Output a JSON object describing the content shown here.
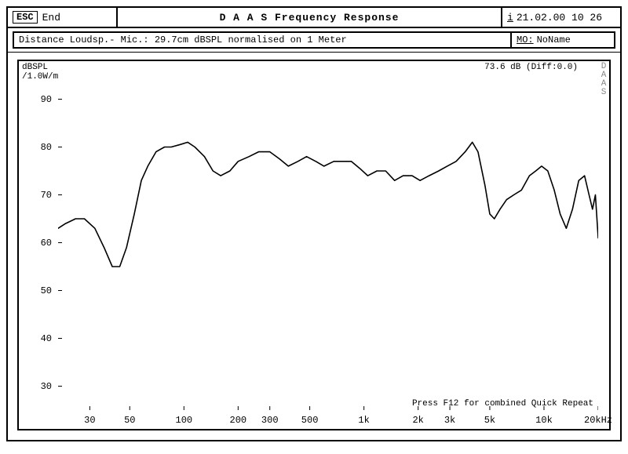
{
  "header": {
    "esc": "ESC",
    "end": "End",
    "title": "D A A S   Frequency Response",
    "info_i": "i",
    "datetime": "21.02.00  10 26"
  },
  "info": {
    "left": "Distance Loudsp.- Mic.: 29.7cm dBSPL normalised on 1 Meter",
    "mo": "MO:",
    "name": "NoName"
  },
  "chart": {
    "type": "line-logx",
    "ylabel_line1": "dBSPL",
    "ylabel_line2": "/1.0W/m",
    "corner": "73.6 dB (Diff:0.0)",
    "watermark": "DAAS",
    "footer": "Press F12 for combined Quick Repeat",
    "ylim": [
      25,
      95
    ],
    "yticks": [
      30,
      40,
      50,
      60,
      70,
      80,
      90
    ],
    "xlim_log10": [
      1.301,
      4.301
    ],
    "xticks": [
      {
        "v": 30,
        "label": "30"
      },
      {
        "v": 50,
        "label": "50"
      },
      {
        "v": 100,
        "label": "100"
      },
      {
        "v": 200,
        "label": "200"
      },
      {
        "v": 300,
        "label": "300"
      },
      {
        "v": 500,
        "label": "500"
      },
      {
        "v": 1000,
        "label": "1k"
      },
      {
        "v": 2000,
        "label": "2k"
      },
      {
        "v": 3000,
        "label": "3k"
      },
      {
        "v": 5000,
        "label": "5k"
      },
      {
        "v": 10000,
        "label": "10k"
      },
      {
        "v": 20000,
        "label": "20kHz"
      }
    ],
    "stroke": "#000000",
    "stroke_width": 1.6,
    "tick_color": "#000000",
    "tick_len": 5,
    "background": "#ffffff",
    "data": [
      [
        20,
        63
      ],
      [
        22,
        64
      ],
      [
        25,
        65
      ],
      [
        28,
        65
      ],
      [
        32,
        63
      ],
      [
        36,
        59
      ],
      [
        40,
        55
      ],
      [
        44,
        55
      ],
      [
        48,
        59
      ],
      [
        53,
        66
      ],
      [
        58,
        73
      ],
      [
        63,
        76
      ],
      [
        70,
        79
      ],
      [
        78,
        80
      ],
      [
        85,
        80
      ],
      [
        95,
        80.5
      ],
      [
        105,
        81
      ],
      [
        115,
        80
      ],
      [
        130,
        78
      ],
      [
        145,
        75
      ],
      [
        160,
        74
      ],
      [
        180,
        75
      ],
      [
        200,
        77
      ],
      [
        230,
        78
      ],
      [
        260,
        79
      ],
      [
        300,
        79
      ],
      [
        340,
        77.5
      ],
      [
        380,
        76
      ],
      [
        430,
        77
      ],
      [
        480,
        78
      ],
      [
        540,
        77
      ],
      [
        600,
        76
      ],
      [
        680,
        77
      ],
      [
        760,
        77
      ],
      [
        850,
        77
      ],
      [
        950,
        75.5
      ],
      [
        1050,
        74
      ],
      [
        1180,
        75
      ],
      [
        1320,
        75
      ],
      [
        1480,
        73
      ],
      [
        1650,
        74
      ],
      [
        1850,
        74
      ],
      [
        2050,
        73
      ],
      [
        2300,
        74
      ],
      [
        2600,
        75
      ],
      [
        2900,
        76
      ],
      [
        3250,
        77
      ],
      [
        3650,
        79
      ],
      [
        4000,
        81
      ],
      [
        4300,
        79
      ],
      [
        4700,
        72
      ],
      [
        5000,
        66
      ],
      [
        5300,
        65
      ],
      [
        5700,
        67
      ],
      [
        6200,
        69
      ],
      [
        6800,
        70
      ],
      [
        7500,
        71
      ],
      [
        8300,
        74
      ],
      [
        9000,
        75
      ],
      [
        9700,
        76
      ],
      [
        10500,
        75
      ],
      [
        11400,
        71
      ],
      [
        12300,
        66
      ],
      [
        13300,
        63
      ],
      [
        14400,
        67
      ],
      [
        15600,
        73
      ],
      [
        16800,
        74
      ],
      [
        17800,
        70
      ],
      [
        18600,
        67
      ],
      [
        19300,
        70
      ],
      [
        20000,
        61
      ]
    ]
  }
}
